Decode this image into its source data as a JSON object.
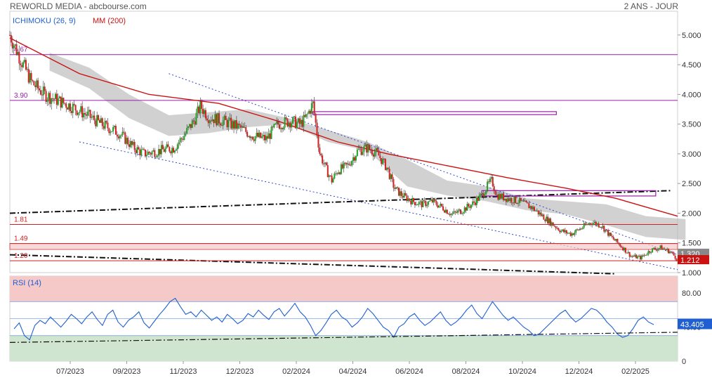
{
  "header": {
    "title": "REWORLD MEDIA - abcbourse.com",
    "period": "2 ANS - JOUR"
  },
  "legend": {
    "ichimoku": "ICHIMOKU (26, 9)",
    "mm": "MM (200)",
    "rsi": "RSI (14)"
  },
  "colors": {
    "up": "#22a022",
    "down": "#d42020",
    "ma": "#cc1111",
    "cloud": "#b8b8b8",
    "cloud_bull": "#a6e39a",
    "level": "#9b1fa8",
    "support": "#cc2222",
    "channel": "#3344cc",
    "rsi": "#1f5fd1",
    "rsi_over": "#f6c9c9",
    "rsi_under": "#cfe5cf"
  },
  "chart_data": [
    {
      "type": "candlestick",
      "title": "REWORLD MEDIA",
      "ylim": [
        1.0,
        5.4
      ],
      "y_ticks": [
        1.0,
        1.5,
        2.0,
        2.5,
        3.0,
        3.5,
        4.0,
        4.5,
        5.0
      ],
      "y_tick_labels": [
        "1.000",
        "1.500",
        "2.000",
        "2.500",
        "3.000",
        "3.500",
        "4.000",
        "4.500",
        "5.000"
      ],
      "x_labels": [
        "07/2023",
        "09/2023",
        "11/2023",
        "12/2023",
        "02/2024",
        "04/2024",
        "06/2024",
        "08/2024",
        "10/2024",
        "12/2024",
        "02/2025"
      ],
      "horizontal_levels": [
        {
          "value": 4.67,
          "label": "4.67",
          "color": "#9b1fa8"
        },
        {
          "value": 3.9,
          "label": "3.90",
          "color": "#9b1fa8"
        },
        {
          "value": 1.81,
          "label": "1.81",
          "color": "#cc2222"
        },
        {
          "value": 1.49,
          "label": "1.49",
          "color": "#cc2222"
        },
        {
          "value": 1.2,
          "label": "1.20",
          "color": "#cc2222"
        }
      ],
      "price_path": [
        [
          0,
          5.0
        ],
        [
          12,
          4.55
        ],
        [
          22,
          4.2
        ],
        [
          35,
          4.0
        ],
        [
          48,
          3.9
        ],
        [
          62,
          3.8
        ],
        [
          78,
          3.65
        ],
        [
          92,
          3.5
        ],
        [
          110,
          3.35
        ],
        [
          125,
          3.1
        ],
        [
          135,
          3.0
        ],
        [
          150,
          3.05
        ],
        [
          165,
          3.1
        ],
        [
          175,
          3.3
        ],
        [
          185,
          3.55
        ],
        [
          192,
          3.8
        ],
        [
          200,
          3.62
        ],
        [
          215,
          3.55
        ],
        [
          230,
          3.45
        ],
        [
          245,
          3.3
        ],
        [
          258,
          3.25
        ],
        [
          270,
          3.5
        ],
        [
          282,
          3.55
        ],
        [
          292,
          3.5
        ],
        [
          298,
          3.6
        ],
        [
          305,
          3.85
        ],
        [
          312,
          3.0
        ],
        [
          318,
          2.75
        ],
        [
          324,
          2.55
        ],
        [
          330,
          2.72
        ],
        [
          340,
          2.8
        ],
        [
          350,
          3.05
        ],
        [
          360,
          3.1
        ],
        [
          370,
          3.0
        ],
        [
          380,
          2.75
        ],
        [
          385,
          2.5
        ],
        [
          388,
          2.4
        ],
        [
          395,
          2.3
        ],
        [
          405,
          2.2
        ],
        [
          415,
          2.15
        ],
        [
          425,
          2.2
        ],
        [
          435,
          2.1
        ],
        [
          445,
          1.98
        ],
        [
          455,
          2.05
        ],
        [
          465,
          2.15
        ],
        [
          475,
          2.3
        ],
        [
          480,
          2.45
        ],
        [
          485,
          2.55
        ],
        [
          490,
          2.3
        ],
        [
          500,
          2.25
        ],
        [
          512,
          2.2
        ],
        [
          525,
          2.1
        ],
        [
          540,
          1.9
        ],
        [
          555,
          1.7
        ],
        [
          565,
          1.65
        ],
        [
          575,
          1.75
        ],
        [
          585,
          1.85
        ],
        [
          595,
          1.8
        ],
        [
          605,
          1.6
        ],
        [
          615,
          1.45
        ],
        [
          625,
          1.28
        ],
        [
          635,
          1.25
        ],
        [
          645,
          1.38
        ],
        [
          655,
          1.42
        ],
        [
          665,
          1.35
        ],
        [
          672,
          1.22
        ]
      ],
      "x_span": 672,
      "ma200_path": [
        [
          0,
          4.95
        ],
        [
          70,
          4.35
        ],
        [
          140,
          4.0
        ],
        [
          210,
          3.85
        ],
        [
          270,
          3.55
        ],
        [
          330,
          3.2
        ],
        [
          380,
          3.0
        ],
        [
          440,
          2.8
        ],
        [
          500,
          2.6
        ],
        [
          560,
          2.42
        ],
        [
          610,
          2.25
        ],
        [
          672,
          1.95
        ]
      ],
      "cloud_path_upper": [
        [
          40,
          4.7
        ],
        [
          80,
          4.45
        ],
        [
          120,
          4.0
        ],
        [
          160,
          3.65
        ],
        [
          200,
          3.7
        ],
        [
          240,
          3.75
        ],
        [
          280,
          3.6
        ],
        [
          320,
          3.4
        ],
        [
          360,
          3.2
        ],
        [
          400,
          2.9
        ],
        [
          440,
          2.55
        ],
        [
          480,
          2.45
        ],
        [
          520,
          2.25
        ],
        [
          560,
          2.2
        ],
        [
          600,
          2.15
        ],
        [
          640,
          1.95
        ],
        [
          680,
          1.9
        ]
      ],
      "cloud_path_lower": [
        [
          40,
          4.4
        ],
        [
          80,
          4.1
        ],
        [
          120,
          3.6
        ],
        [
          160,
          3.3
        ],
        [
          200,
          3.35
        ],
        [
          240,
          3.45
        ],
        [
          280,
          3.5
        ],
        [
          320,
          3.2
        ],
        [
          360,
          3.05
        ],
        [
          400,
          2.45
        ],
        [
          440,
          2.3
        ],
        [
          480,
          2.2
        ],
        [
          520,
          2.05
        ],
        [
          560,
          1.98
        ],
        [
          600,
          1.8
        ],
        [
          640,
          1.6
        ],
        [
          680,
          1.55
        ]
      ],
      "rectangles": [
        {
          "x0": 305,
          "x1": 550,
          "y0": 3.66,
          "y1": 3.71,
          "color": "#9b1fa8"
        },
        {
          "x0": 475,
          "x1": 650,
          "y0": 2.29,
          "y1": 2.38,
          "color": "#9b1fa8"
        }
      ],
      "current_values": [
        {
          "value": 1.32,
          "label": "1.320",
          "color": "#888888"
        },
        {
          "value": 1.212,
          "label": "1.212",
          "color": "#cc1111"
        }
      ]
    },
    {
      "type": "line",
      "title": "RSI (14)",
      "ylim": [
        0,
        100
      ],
      "y_ticks": [
        0,
        40,
        80
      ],
      "y_tick_labels": [
        "0",
        "40.00",
        "80.00"
      ],
      "bands": [
        {
          "from": 70,
          "to": 100,
          "color": "#f6c9c9"
        },
        {
          "from": 0,
          "to": 30,
          "color": "#cfe5cf"
        }
      ],
      "reference_lines": [
        70,
        50,
        30
      ],
      "last_value": {
        "value": 43.405,
        "label": "43.405"
      },
      "values": [
        38,
        45,
        30,
        25,
        42,
        48,
        44,
        52,
        46,
        40,
        47,
        55,
        50,
        44,
        52,
        58,
        49,
        42,
        55,
        60,
        46,
        40,
        48,
        52,
        58,
        45,
        39,
        47,
        55,
        62,
        70,
        74,
        64,
        55,
        58,
        52,
        60,
        54,
        48,
        52,
        46,
        55,
        50,
        44,
        48,
        56,
        52,
        60,
        54,
        49,
        58,
        62,
        53,
        60,
        68,
        58,
        52,
        42,
        30,
        36,
        45,
        55,
        60,
        52,
        48,
        40,
        45,
        52,
        62,
        56,
        48,
        40,
        36,
        28,
        40,
        44,
        52,
        56,
        48,
        42,
        46,
        52,
        58,
        48,
        42,
        46,
        52,
        60,
        66,
        56,
        50,
        60,
        70,
        62,
        54,
        48,
        52,
        46,
        40,
        36,
        30,
        32,
        38,
        44,
        50,
        56,
        60,
        52,
        46,
        50,
        56,
        62,
        60,
        54,
        46,
        40,
        32,
        28,
        30,
        38,
        48,
        52,
        46,
        43
      ],
      "trend_line": [
        [
          0,
          22
        ],
        [
          123,
          34
        ]
      ]
    }
  ]
}
